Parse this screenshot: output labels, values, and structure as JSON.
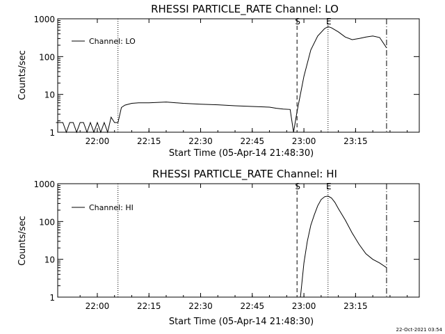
{
  "footer_date": "22-Oct-2021 03:54",
  "chart_data": [
    {
      "type": "line",
      "title": "RHESSI PARTICLE_RATE Channel: LO",
      "xlabel": "Start Time (05-Apr-14 21:48:30)",
      "ylabel": "Counts/sec",
      "yscale": "log",
      "ylim": [
        1,
        1000
      ],
      "xlim_minutes_from_start": [
        0,
        105
      ],
      "x_ticks": [
        "22:00",
        "22:15",
        "22:30",
        "22:45",
        "23:00",
        "23:15"
      ],
      "y_ticks": [
        "1",
        "10",
        "100",
        "1000"
      ],
      "legend": "top-left",
      "markers": [
        {
          "time": "22:06",
          "style": "dotted",
          "label": ""
        },
        {
          "time": "22:58",
          "style": "dashed",
          "label": "S"
        },
        {
          "time": "23:07",
          "style": "dotted",
          "label": "E"
        },
        {
          "time": "23:24",
          "style": "dash-dot",
          "label": ""
        }
      ],
      "series": [
        {
          "name": "Channel: LO",
          "x": [
            "21:48",
            "21:50",
            "21:51",
            "21:52",
            "21:53",
            "21:54",
            "21:55",
            "21:56",
            "21:57",
            "21:58",
            "21:59",
            "22:00",
            "22:01",
            "22:02",
            "22:03",
            "22:04",
            "22:05",
            "22:06",
            "22:07",
            "22:08",
            "22:10",
            "22:12",
            "22:15",
            "22:20",
            "22:25",
            "22:30",
            "22:35",
            "22:40",
            "22:45",
            "22:50",
            "22:52",
            "22:54",
            "22:56",
            "22:57",
            "22:58",
            "23:00",
            "23:02",
            "23:04",
            "23:06",
            "23:07",
            "23:08",
            "23:10",
            "23:12",
            "23:14",
            "23:16",
            "23:18",
            "23:20",
            "23:22",
            "23:24"
          ],
          "values": [
            1.8,
            1.8,
            1,
            1.8,
            1.8,
            1,
            1.8,
            1.8,
            1,
            1.8,
            1,
            1.8,
            1,
            1.8,
            1,
            2.5,
            1.8,
            1.8,
            4.5,
            5.2,
            5.8,
            6,
            6,
            6.3,
            5.8,
            5.5,
            5.3,
            5,
            4.8,
            4.6,
            4.3,
            4.1,
            4,
            1,
            3.5,
            30,
            150,
            350,
            550,
            620,
            580,
            450,
            330,
            280,
            300,
            330,
            350,
            320,
            170
          ]
        }
      ]
    },
    {
      "type": "line",
      "title": "RHESSI PARTICLE_RATE Channel: HI",
      "xlabel": "Start Time (05-Apr-14 21:48:30)",
      "ylabel": "Counts/sec",
      "yscale": "log",
      "ylim": [
        1,
        1000
      ],
      "xlim_minutes_from_start": [
        0,
        105
      ],
      "x_ticks": [
        "22:00",
        "22:15",
        "22:30",
        "22:45",
        "23:00",
        "23:15"
      ],
      "y_ticks": [
        "1",
        "10",
        "100",
        "1000"
      ],
      "legend": "top-left",
      "markers": [
        {
          "time": "22:06",
          "style": "dotted",
          "label": ""
        },
        {
          "time": "22:58",
          "style": "dashed",
          "label": "S"
        },
        {
          "time": "23:07",
          "style": "dotted",
          "label": "E"
        },
        {
          "time": "23:24",
          "style": "dash-dot",
          "label": ""
        }
      ],
      "series": [
        {
          "name": "Channel: HI",
          "x": [
            "22:59",
            "23:00",
            "23:01",
            "23:02",
            "23:03",
            "23:04",
            "23:05",
            "23:06",
            "23:07",
            "23:08",
            "23:09",
            "23:10",
            "23:12",
            "23:14",
            "23:16",
            "23:18",
            "23:20",
            "23:22",
            "23:24"
          ],
          "values": [
            1,
            8,
            30,
            80,
            150,
            260,
            380,
            450,
            470,
            420,
            320,
            220,
            110,
            50,
            25,
            14,
            10,
            8,
            6
          ]
        }
      ]
    }
  ]
}
